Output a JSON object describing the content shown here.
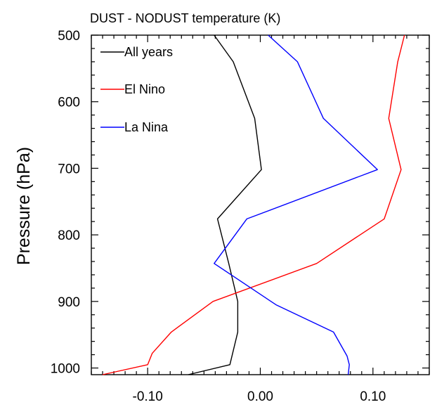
{
  "chart_data": {
    "type": "line",
    "title": "DUST - NODUST temperature (K)",
    "xlabel": "",
    "ylabel": "Pressure (hPa)",
    "xlim": [
      -0.15,
      0.15
    ],
    "ylim": [
      1010,
      500
    ],
    "y_inverted": true,
    "grid": false,
    "legend_position": "top-left",
    "x_ticks": [
      {
        "value": -0.1,
        "label": "-0.10"
      },
      {
        "value": 0.0,
        "label": "0.00"
      },
      {
        "value": 0.1,
        "label": "0.10"
      }
    ],
    "y_ticks": [
      {
        "value": 500,
        "label": "500"
      },
      {
        "value": 600,
        "label": "600"
      },
      {
        "value": 700,
        "label": "700"
      },
      {
        "value": 800,
        "label": "800"
      },
      {
        "value": 900,
        "label": "900"
      },
      {
        "value": 1000,
        "label": "1000"
      }
    ],
    "series": [
      {
        "name": "All years",
        "color": "#000000",
        "x": [
          -0.041,
          -0.024,
          -0.005,
          0.001,
          -0.038,
          -0.028,
          -0.02,
          -0.02,
          -0.027,
          -0.064
        ],
        "y": [
          500,
          540,
          625,
          702,
          776,
          843,
          900,
          946,
          995,
          1010
        ]
      },
      {
        "name": "El Nino",
        "color": "#ff0000",
        "x": [
          0.128,
          0.122,
          0.114,
          0.125,
          0.11,
          0.05,
          -0.042,
          -0.079,
          -0.096,
          -0.1,
          -0.14
        ],
        "y": [
          500,
          540,
          625,
          702,
          776,
          843,
          900,
          946,
          978,
          995,
          1010
        ]
      },
      {
        "name": "La Nina",
        "color": "#0000ff",
        "x": [
          0.007,
          0.033,
          0.056,
          0.104,
          -0.012,
          -0.041,
          0.014,
          0.065,
          0.077,
          0.079,
          0.078
        ],
        "y": [
          500,
          540,
          625,
          702,
          776,
          843,
          905,
          946,
          982,
          995,
          1010
        ]
      }
    ]
  }
}
